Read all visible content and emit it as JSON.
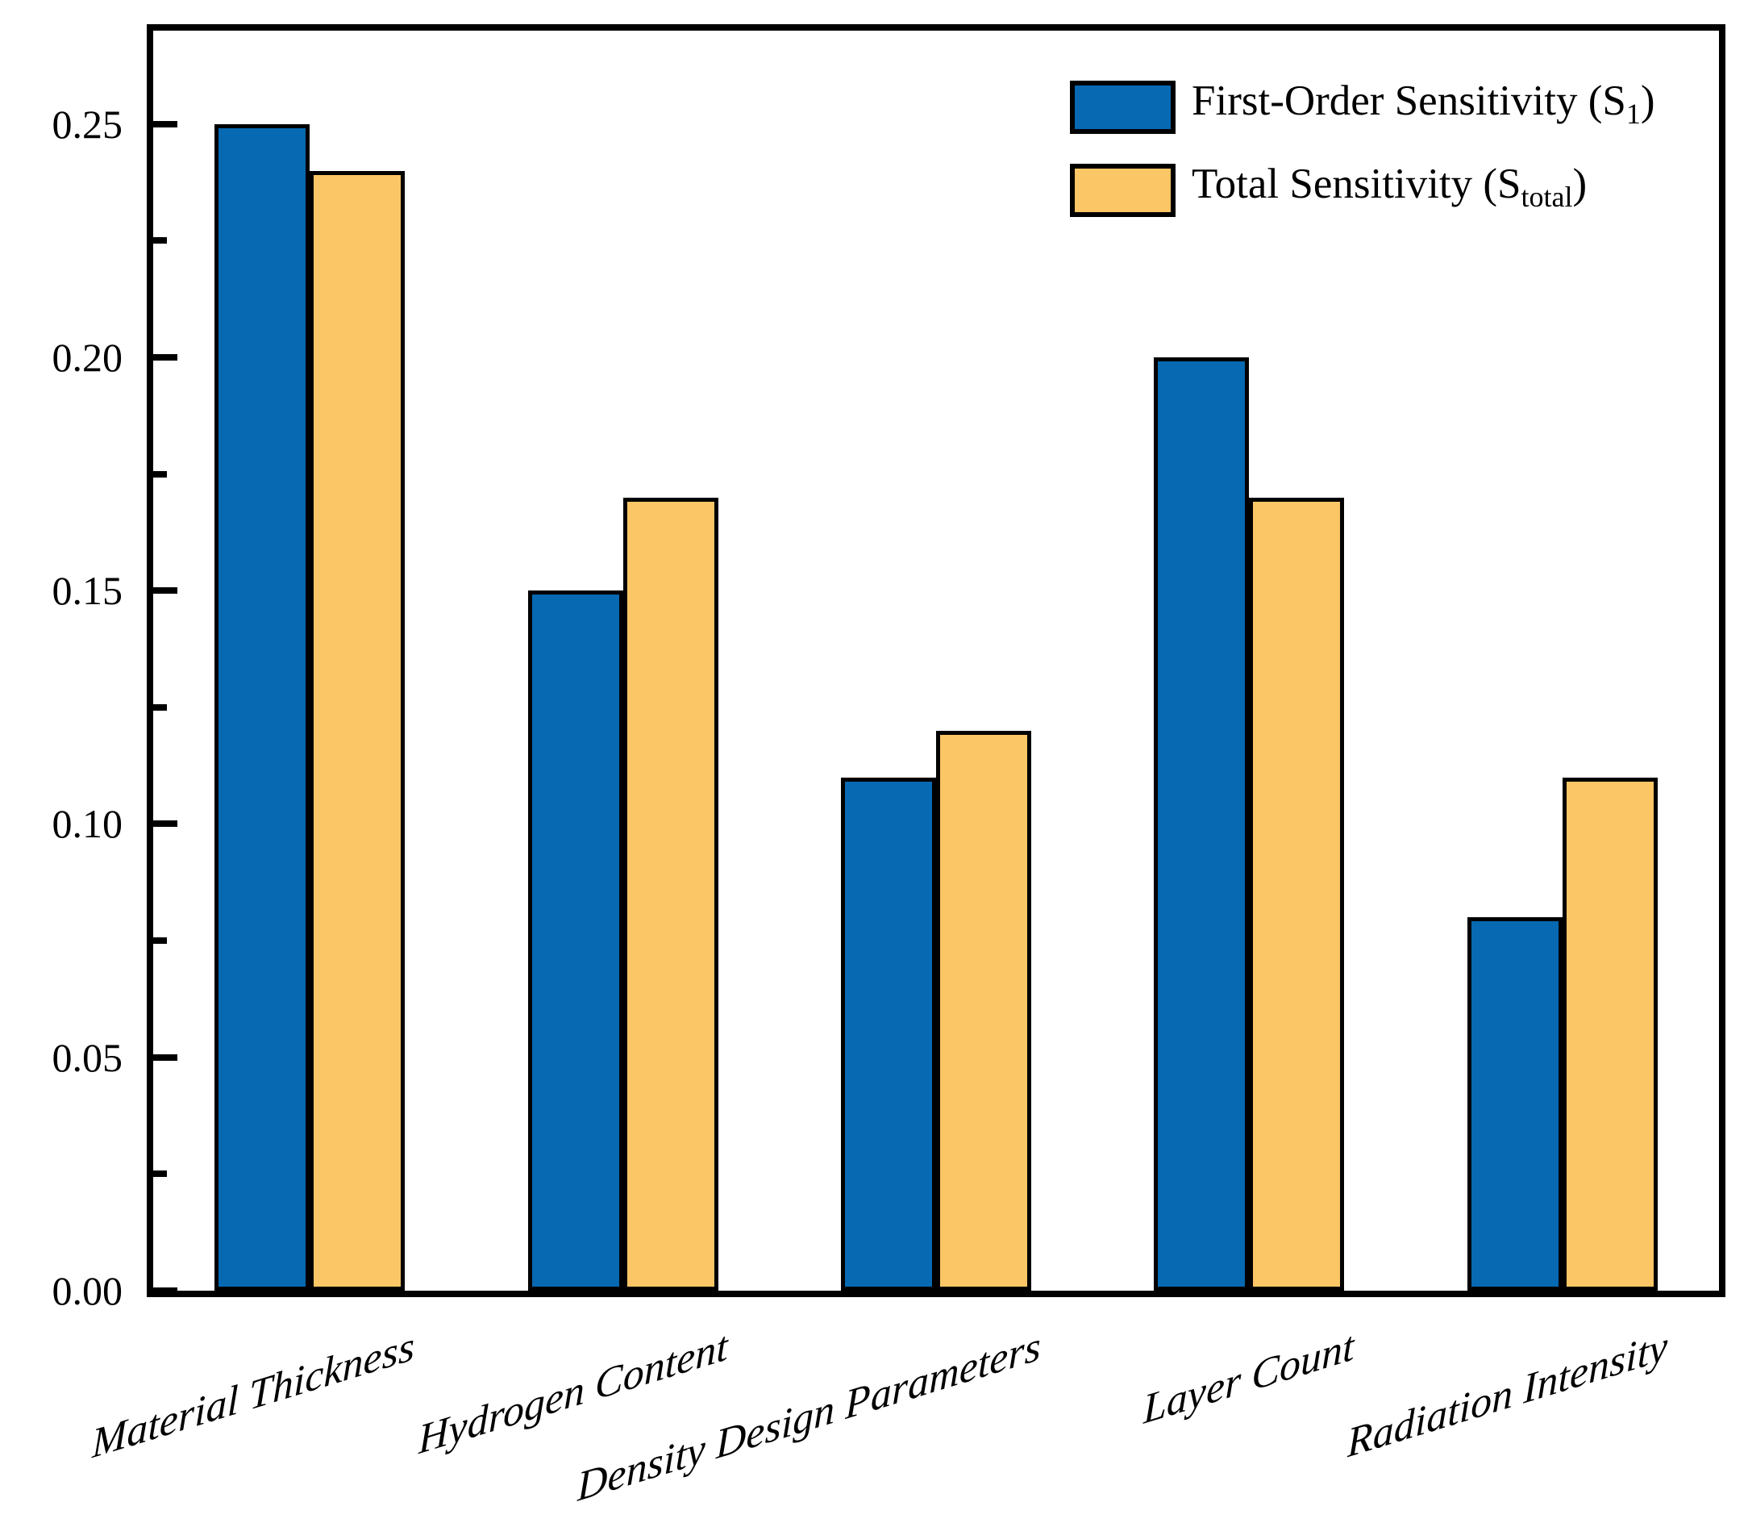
{
  "chart_data": {
    "type": "bar",
    "title": "",
    "xlabel": "",
    "ylabel": "",
    "categories": [
      "Material Thickness",
      "Hydrogen Content",
      "Density Design Parameters",
      "Layer Count",
      "Radiation Intensity"
    ],
    "series": [
      {
        "name": "First-Order Sensitivity (S1)",
        "legend_pre": "First-Order Sensitivity (S",
        "legend_sub": "1",
        "legend_post": ")",
        "color": "#0769B1",
        "values": [
          0.25,
          0.15,
          0.11,
          0.2,
          0.08
        ]
      },
      {
        "name": "Total Sensitivity (Stotal)",
        "legend_pre": "Total Sensitivity (S",
        "legend_sub": "total",
        "legend_post": ")",
        "color": "#FBC666",
        "values": [
          0.24,
          0.17,
          0.12,
          0.17,
          0.11
        ]
      }
    ],
    "ylim": [
      0,
      0.27
    ],
    "yticks": [
      {
        "v": 0.0,
        "label": "0.00"
      },
      {
        "v": 0.05,
        "label": "0.05"
      },
      {
        "v": 0.1,
        "label": "0.10"
      },
      {
        "v": 0.15,
        "label": "0.15"
      },
      {
        "v": 0.2,
        "label": "0.20"
      },
      {
        "v": 0.25,
        "label": "0.25"
      }
    ],
    "yticks_minor": [
      0.025,
      0.075,
      0.125,
      0.175,
      0.225
    ],
    "grid": false,
    "legend_position": "top-right",
    "bar_edge_color": "#000000",
    "background_color": "#FFFFFF"
  }
}
